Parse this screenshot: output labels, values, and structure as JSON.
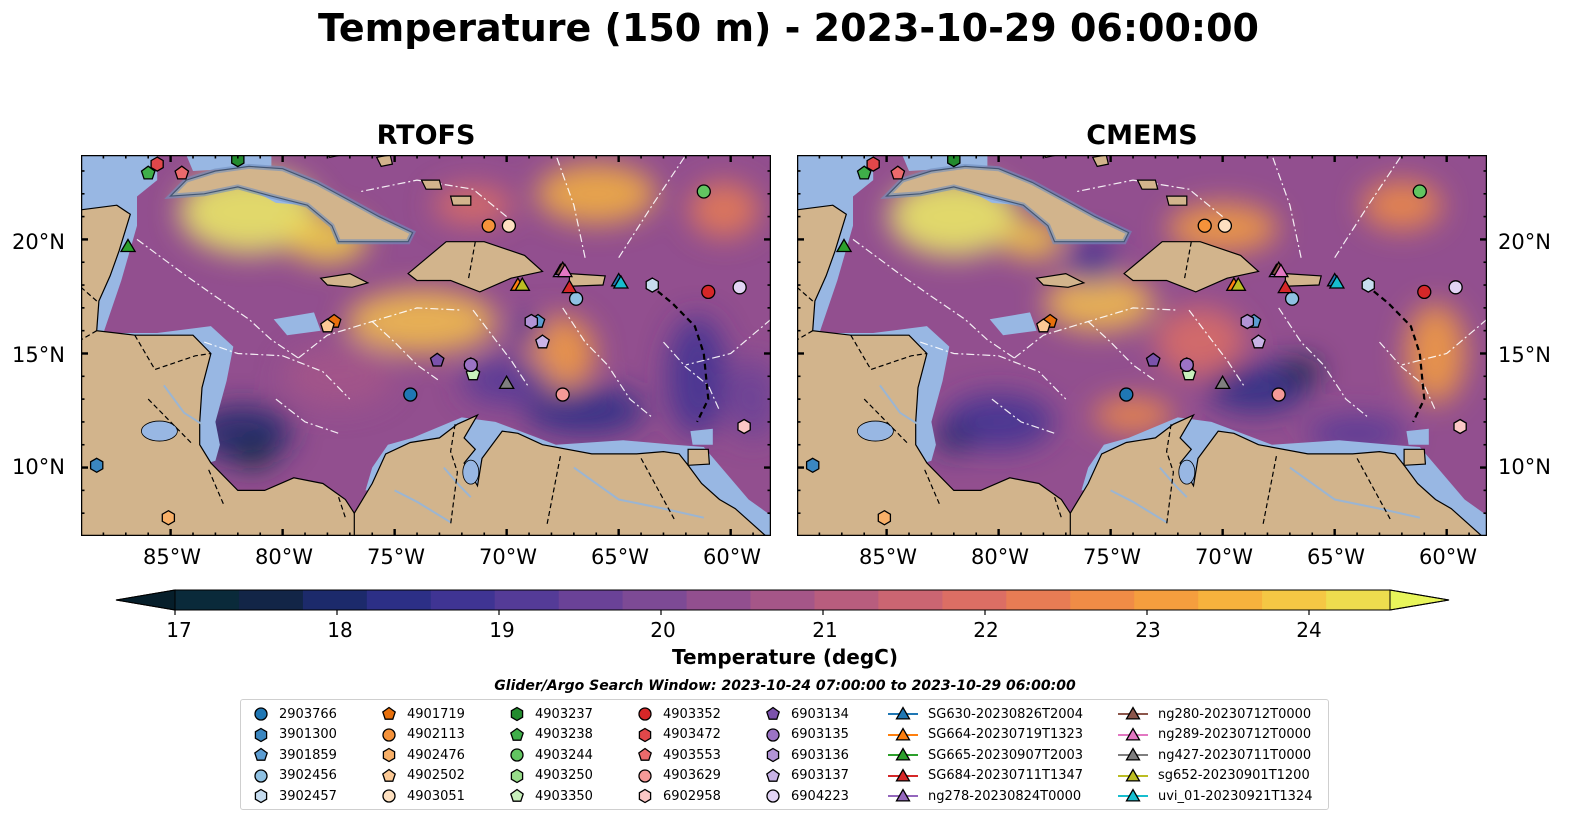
{
  "title": "Temperature (150 m) - 2023-10-29 06:00:00",
  "panels": [
    {
      "id": "left",
      "title": "RTOFS"
    },
    {
      "id": "right",
      "title": "CMEMS"
    }
  ],
  "lat_ticks": [
    {
      "lat": 10,
      "label": "10°N"
    },
    {
      "lat": 15,
      "label": "15°N"
    },
    {
      "lat": 20,
      "label": "20°N"
    }
  ],
  "lon_ticks": [
    {
      "lon": -85,
      "label": "85°W"
    },
    {
      "lon": -80,
      "label": "80°W"
    },
    {
      "lon": -75,
      "label": "75°W"
    },
    {
      "lon": -70,
      "label": "70°W"
    },
    {
      "lon": -65,
      "label": "65°W"
    },
    {
      "lon": -60,
      "label": "60°W"
    }
  ],
  "map_extent": {
    "lon_min": -89,
    "lon_max": -58.2,
    "lat_min": 7,
    "lat_max": 23.7
  },
  "colorbar": {
    "label": "Temperature (degC)",
    "min": 17,
    "max": 24.5,
    "extend": "both",
    "ticks": [
      "17",
      "18",
      "19",
      "20",
      "21",
      "22",
      "23",
      "24"
    ],
    "colors": [
      "#0a2a3a",
      "#122547",
      "#1c2a6b",
      "#2c2f86",
      "#3f3493",
      "#543b97",
      "#6a4297",
      "#7d4a95",
      "#924f8f",
      "#a55688",
      "#b85d7e",
      "#cb6572",
      "#dc6e64",
      "#e87c54",
      "#f08c46",
      "#f59e3e",
      "#f7b23d",
      "#f5c744",
      "#eedd4e"
    ],
    "under_color": "#061e2a",
    "over_color": "#e8f55a"
  },
  "legend": {
    "title": "Glider/Argo Search Window: 2023-10-24 07:00:00 to 2023-10-29 06:00:00",
    "columns": [
      [
        {
          "label": "2903766",
          "marker": "circle",
          "color": "#1f77b4"
        },
        {
          "label": "3901300",
          "marker": "hexagon",
          "color": "#3a86c0"
        },
        {
          "label": "3901859",
          "marker": "pentagon",
          "color": "#5c9dd2"
        },
        {
          "label": "3902456",
          "marker": "circle",
          "color": "#8fc1e3"
        },
        {
          "label": "3902457",
          "marker": "hexagon",
          "color": "#c6dcef"
        }
      ],
      [
        {
          "label": "4901719",
          "marker": "pentagon",
          "color": "#e8700c"
        },
        {
          "label": "4902113",
          "marker": "circle",
          "color": "#f5923a"
        },
        {
          "label": "4902476",
          "marker": "hexagon",
          "color": "#f8b068"
        },
        {
          "label": "4902502",
          "marker": "pentagon",
          "color": "#fbc995"
        },
        {
          "label": "4903051",
          "marker": "circle",
          "color": "#fde0c0"
        }
      ],
      [
        {
          "label": "4903237",
          "marker": "hexagon",
          "color": "#238b2e"
        },
        {
          "label": "4903238",
          "marker": "pentagon",
          "color": "#3fae49"
        },
        {
          "label": "4903244",
          "marker": "circle",
          "color": "#62c461"
        },
        {
          "label": "4903250",
          "marker": "hexagon",
          "color": "#98db8a"
        },
        {
          "label": "4903350",
          "marker": "pentagon",
          "color": "#c8f0bc"
        }
      ],
      [
        {
          "label": "4903352",
          "marker": "circle",
          "color": "#d62728"
        },
        {
          "label": "4903472",
          "marker": "hexagon",
          "color": "#e0474a"
        },
        {
          "label": "4903553",
          "marker": "pentagon",
          "color": "#ec6a6c"
        },
        {
          "label": "4903629",
          "marker": "circle",
          "color": "#f49a98"
        },
        {
          "label": "6902958",
          "marker": "hexagon",
          "color": "#fbc8c6"
        }
      ],
      [
        {
          "label": "6903134",
          "marker": "pentagon",
          "color": "#7b52ab"
        },
        {
          "label": "6903135",
          "marker": "circle",
          "color": "#9b73c4"
        },
        {
          "label": "6903136",
          "marker": "hexagon",
          "color": "#b294d6"
        },
        {
          "label": "6903137",
          "marker": "pentagon",
          "color": "#c9b3e6"
        },
        {
          "label": "6904223",
          "marker": "circle",
          "color": "#e2d4f4"
        }
      ],
      [
        {
          "label": "SG630-20230826T2004",
          "marker": "triangle",
          "color": "#1f77b4"
        },
        {
          "label": "SG664-20230719T1323",
          "marker": "triangle",
          "color": "#ff7f0e"
        },
        {
          "label": "SG665-20230907T2003",
          "marker": "triangle",
          "color": "#2ca02c"
        },
        {
          "label": "SG684-20230711T1347",
          "marker": "triangle",
          "color": "#d62728"
        },
        {
          "label": "ng278-20230824T0000",
          "marker": "triangle",
          "color": "#9467bd"
        }
      ],
      [
        {
          "label": "ng280-20230712T0000",
          "marker": "triangle",
          "color": "#8c564b"
        },
        {
          "label": "ng289-20230712T0000",
          "marker": "triangle",
          "color": "#e377c2"
        },
        {
          "label": "ng427-20230711T0000",
          "marker": "triangle",
          "color": "#7f7f7f"
        },
        {
          "label": "sg652-20230901T1200",
          "marker": "triangle",
          "color": "#bcbd22"
        },
        {
          "label": "uvi_01-20230921T1324",
          "marker": "triangle",
          "color": "#17becf"
        }
      ]
    ]
  },
  "observations": [
    {
      "id": "2903766",
      "lon": -74.3,
      "lat": 13.2
    },
    {
      "id": "3901300",
      "lon": -88.3,
      "lat": 10.1
    },
    {
      "id": "3901859",
      "lon": -68.6,
      "lat": 16.4
    },
    {
      "id": "3902456",
      "lon": -66.9,
      "lat": 17.4
    },
    {
      "id": "3902457",
      "lon": -63.5,
      "lat": 18.0
    },
    {
      "id": "4901719",
      "lon": -77.7,
      "lat": 16.4
    },
    {
      "id": "4902113",
      "lon": -70.8,
      "lat": 20.6
    },
    {
      "id": "4902476",
      "lon": -85.1,
      "lat": 7.8
    },
    {
      "id": "4902502",
      "lon": -78.0,
      "lat": 16.2
    },
    {
      "id": "4903051",
      "lon": -69.9,
      "lat": 20.6
    },
    {
      "id": "4903237",
      "lon": -82.0,
      "lat": 23.5
    },
    {
      "id": "4903238",
      "lon": -86.0,
      "lat": 22.9
    },
    {
      "id": "4903244",
      "lon": -61.2,
      "lat": 22.1
    },
    {
      "id": "4903250",
      "lon": -71.6,
      "lat": 14.5
    },
    {
      "id": "4903350",
      "lon": -71.5,
      "lat": 14.1
    },
    {
      "id": "4903352",
      "lon": -61.0,
      "lat": 17.7
    },
    {
      "id": "4903472",
      "lon": -85.6,
      "lat": 23.3
    },
    {
      "id": "4903553",
      "lon": -84.5,
      "lat": 22.9
    },
    {
      "id": "4903629",
      "lon": -67.5,
      "lat": 13.2
    },
    {
      "id": "6902958",
      "lon": -59.4,
      "lat": 11.8
    },
    {
      "id": "6903134",
      "lon": -73.1,
      "lat": 14.7
    },
    {
      "id": "6903135",
      "lon": -71.6,
      "lat": 14.5
    },
    {
      "id": "6903136",
      "lon": -68.9,
      "lat": 16.4
    },
    {
      "id": "6903137",
      "lon": -68.4,
      "lat": 15.5
    },
    {
      "id": "6904223",
      "lon": -59.6,
      "lat": 17.9
    },
    {
      "id": "SG630-20230826T2004",
      "lon": -65.0,
      "lat": 18.2
    },
    {
      "id": "SG664-20230719T1323",
      "lon": -69.5,
      "lat": 18.0
    },
    {
      "id": "SG665-20230907T2003",
      "lon": -86.9,
      "lat": 19.7
    },
    {
      "id": "SG684-20230711T1347",
      "lon": -67.2,
      "lat": 17.9
    },
    {
      "id": "ng278-20230824T0000",
      "lon": -67.6,
      "lat": 18.6
    },
    {
      "id": "ng280-20230712T0000",
      "lon": -67.5,
      "lat": 18.7
    },
    {
      "id": "ng289-20230712T0000",
      "lon": -67.4,
      "lat": 18.6
    },
    {
      "id": "ng427-20230711T0000",
      "lon": -70.0,
      "lat": 13.7
    },
    {
      "id": "sg652-20230901T1200",
      "lon": -69.3,
      "lat": 18.0
    },
    {
      "id": "uvi_01-20230921T1324",
      "lon": -64.9,
      "lat": 18.1
    }
  ]
}
